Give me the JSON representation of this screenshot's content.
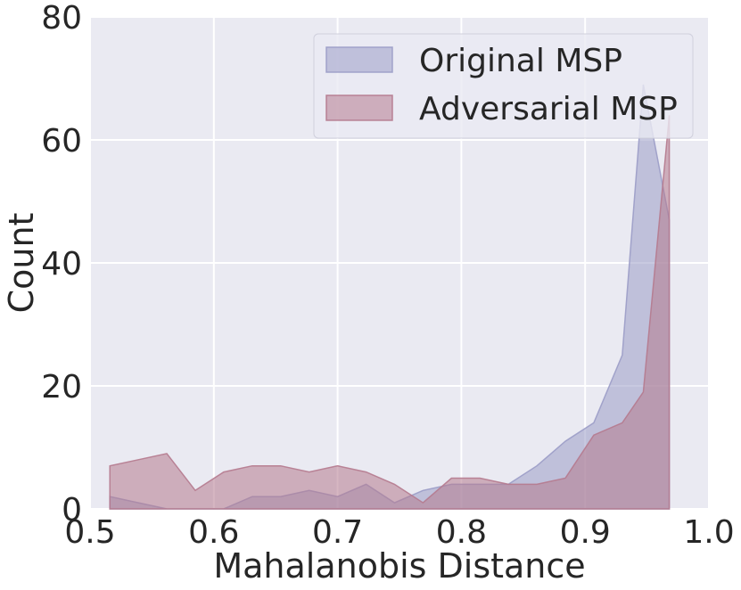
{
  "chart_data": {
    "type": "area",
    "title": "",
    "xlabel": "Mahalanobis Distance",
    "ylabel": "Count",
    "xlim": [
      0.5,
      1.0
    ],
    "ylim": [
      0,
      80
    ],
    "xticks": [
      "0.5",
      "0.6",
      "0.7",
      "0.8",
      "0.9",
      "1.0"
    ],
    "yticks": [
      "0",
      "20",
      "40",
      "60",
      "80"
    ],
    "grid": true,
    "legend_position": "top-right",
    "series": [
      {
        "name": "Original MSP",
        "color": "#9b9cc6",
        "x": [
          0.516,
          0.539,
          0.562,
          0.585,
          0.608,
          0.631,
          0.654,
          0.677,
          0.7,
          0.723,
          0.746,
          0.769,
          0.792,
          0.815,
          0.838,
          0.861,
          0.884,
          0.907,
          0.93,
          0.947,
          0.968
        ],
        "values": [
          2,
          1,
          0,
          0,
          0,
          2,
          2,
          3,
          2,
          4,
          1,
          3,
          4,
          4,
          4,
          7,
          11,
          14,
          25,
          69,
          47
        ]
      },
      {
        "name": "Adversarial MSP",
        "color": "#b57a8e",
        "x": [
          0.516,
          0.539,
          0.562,
          0.585,
          0.608,
          0.631,
          0.654,
          0.677,
          0.7,
          0.723,
          0.746,
          0.769,
          0.792,
          0.815,
          0.838,
          0.861,
          0.884,
          0.907,
          0.93,
          0.947,
          0.968
        ],
        "values": [
          7,
          8,
          9,
          3,
          6,
          7,
          7,
          6,
          7,
          6,
          4,
          1,
          5,
          5,
          4,
          4,
          5,
          12,
          14,
          19,
          64
        ]
      }
    ]
  }
}
